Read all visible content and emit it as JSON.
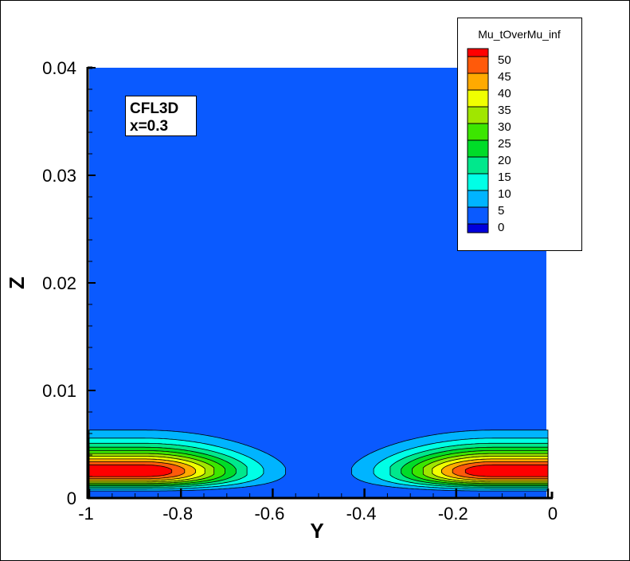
{
  "chart_data": {
    "type": "contour",
    "xlabel": "Y",
    "ylabel": "Z",
    "xlim": [
      -1,
      0
    ],
    "ylim": [
      0,
      0.04
    ],
    "x_ticks": [
      "-1",
      "-0.8",
      "-0.6",
      "-0.4",
      "-0.2",
      "0"
    ],
    "x_tick_values": [
      -1,
      -0.8,
      -0.6,
      -0.4,
      -0.2,
      0
    ],
    "y_ticks": [
      "0",
      "0.01",
      "0.02",
      "0.03",
      "0.04"
    ],
    "y_tick_values": [
      0,
      0.01,
      0.02,
      0.03,
      0.04
    ],
    "annotation": [
      "CFL3D",
      "x=0.3"
    ],
    "legend": {
      "title": "Mu_tOverMu_inf",
      "placement": "top-right",
      "levels": [
        "50",
        "45",
        "40",
        "35",
        "30",
        "25",
        "20",
        "15",
        "10",
        "5",
        "0"
      ],
      "colors": [
        "#ff0000",
        "#ff5a0a",
        "#ffaa00",
        "#f0ff00",
        "#a0e600",
        "#3ce600",
        "#00dc28",
        "#00e88c",
        "#00ffe6",
        "#00b4ff",
        "#0a5aff",
        "#0000dc"
      ]
    },
    "contour_levels": [
      5,
      10,
      15,
      20,
      25,
      30,
      35,
      40,
      45,
      50
    ],
    "background_color": "#0a5aff"
  }
}
